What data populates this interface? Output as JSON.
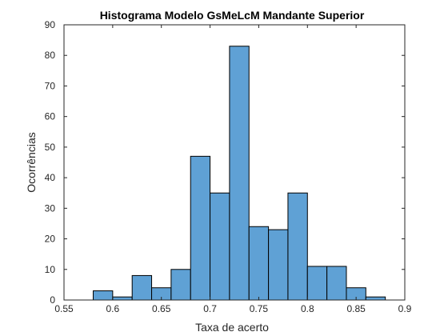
{
  "chart_data": {
    "type": "bar",
    "title": "Histograma Modelo GsMeLcM Mandante Superior",
    "xlabel": "Taxa de acerto",
    "ylabel": "Ocorrências",
    "xlim": [
      0.55,
      0.9
    ],
    "ylim": [
      0,
      90
    ],
    "xticks": [
      "0.55",
      "0.6",
      "0.65",
      "0.7",
      "0.75",
      "0.8",
      "0.85",
      "0.9"
    ],
    "yticks": [
      "0",
      "10",
      "20",
      "30",
      "40",
      "50",
      "60",
      "70",
      "80",
      "90"
    ],
    "bin_edges": [
      0.58,
      0.6,
      0.62,
      0.64,
      0.66,
      0.68,
      0.7,
      0.72,
      0.74,
      0.76,
      0.78,
      0.8,
      0.82,
      0.84,
      0.86,
      0.88
    ],
    "values": [
      3,
      1,
      8,
      4,
      10,
      47,
      35,
      83,
      24,
      23,
      35,
      11,
      11,
      4,
      1
    ],
    "bar_color": "#5fa1d5",
    "edge_color": "#000000",
    "grid": false
  }
}
